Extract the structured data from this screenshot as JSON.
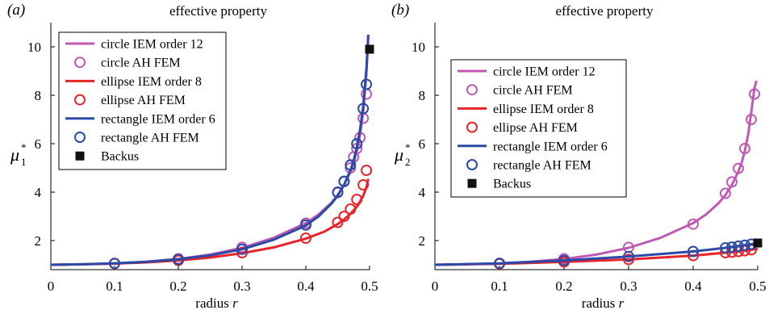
{
  "chart_data": [
    {
      "type": "line",
      "panel_label": "(a)",
      "title": "effective property",
      "xlabel": "radius r",
      "ylabel": "μ",
      "ylabel_sup": "*",
      "ylabel_sub": "1",
      "xlim": [
        0,
        0.5
      ],
      "ylim": [
        0.8,
        11
      ],
      "xticks": [
        "0",
        "0.1",
        "0.2",
        "0.3",
        "0.4",
        "0.5"
      ],
      "yticks": [
        "2",
        "4",
        "6",
        "8",
        "10"
      ],
      "legend_placement": "top-left",
      "series": [
        {
          "name": "circle IEM order 12",
          "kind": "line",
          "color": "#bf5ab4",
          "x": [
            0,
            0.05,
            0.1,
            0.15,
            0.2,
            0.25,
            0.3,
            0.35,
            0.4,
            0.42,
            0.44,
            0.45,
            0.46,
            0.47,
            0.475,
            0.48,
            0.485,
            0.49,
            0.495,
            0.498
          ],
          "y": [
            1.0,
            1.02,
            1.06,
            1.13,
            1.24,
            1.42,
            1.7,
            2.12,
            2.72,
            3.08,
            3.56,
            3.88,
            4.3,
            4.85,
            5.2,
            5.7,
            6.35,
            7.3,
            8.9,
            10.4
          ]
        },
        {
          "name": "circle AH FEM",
          "kind": "marker",
          "color": "#bf5ab4",
          "x": [
            0.1,
            0.2,
            0.3,
            0.4,
            0.45,
            0.46,
            0.47,
            0.475,
            0.48,
            0.485,
            0.49,
            0.495
          ],
          "y": [
            1.06,
            1.25,
            1.72,
            2.72,
            3.98,
            4.43,
            5.0,
            5.45,
            5.8,
            6.25,
            7.05,
            8.05
          ]
        },
        {
          "name": "ellipse IEM order 8",
          "kind": "line",
          "color": "#e8232a",
          "x": [
            0,
            0.05,
            0.1,
            0.15,
            0.2,
            0.25,
            0.3,
            0.35,
            0.4,
            0.43,
            0.45,
            0.46,
            0.47,
            0.48,
            0.485,
            0.49,
            0.495,
            0.498
          ],
          "y": [
            1.0,
            1.02,
            1.05,
            1.1,
            1.18,
            1.3,
            1.48,
            1.72,
            2.08,
            2.38,
            2.68,
            2.87,
            3.1,
            3.4,
            3.6,
            3.85,
            4.2,
            4.55
          ]
        },
        {
          "name": "ellipse AH FEM",
          "kind": "marker",
          "color": "#e8232a",
          "x": [
            0.1,
            0.2,
            0.3,
            0.4,
            0.45,
            0.46,
            0.47,
            0.48,
            0.49,
            0.495
          ],
          "y": [
            1.05,
            1.18,
            1.5,
            2.1,
            2.75,
            3.0,
            3.3,
            3.7,
            4.3,
            4.9
          ]
        },
        {
          "name": "rectangle IEM order 6",
          "kind": "line",
          "color": "#2a4aa6",
          "x": [
            0,
            0.05,
            0.1,
            0.15,
            0.2,
            0.25,
            0.3,
            0.35,
            0.4,
            0.42,
            0.44,
            0.45,
            0.46,
            0.47,
            0.475,
            0.48,
            0.485,
            0.49,
            0.495,
            0.498
          ],
          "y": [
            1.0,
            1.02,
            1.06,
            1.12,
            1.23,
            1.39,
            1.64,
            2.04,
            2.62,
            3.0,
            3.52,
            3.85,
            4.3,
            4.9,
            5.3,
            5.85,
            6.55,
            7.55,
            9.1,
            10.5
          ]
        },
        {
          "name": "rectangle AH FEM",
          "kind": "marker",
          "color": "#2a4aa6",
          "x": [
            0.1,
            0.2,
            0.3,
            0.4,
            0.45,
            0.46,
            0.47,
            0.48,
            0.49,
            0.495
          ],
          "y": [
            1.06,
            1.22,
            1.64,
            2.64,
            4.0,
            4.45,
            5.12,
            6.0,
            7.45,
            8.45
          ]
        },
        {
          "name": "Backus",
          "kind": "square",
          "color": "#111111",
          "x": [
            0.5
          ],
          "y": [
            9.9
          ]
        }
      ]
    },
    {
      "type": "line",
      "panel_label": "(b)",
      "title": "effective property",
      "xlabel": "radius r",
      "ylabel": "μ",
      "ylabel_sup": "*",
      "ylabel_sub": "2",
      "xlim": [
        0,
        0.5
      ],
      "ylim": [
        0.8,
        11
      ],
      "xticks": [
        "0",
        "0.1",
        "0.2",
        "0.3",
        "0.4",
        "0.5"
      ],
      "yticks": [
        "2",
        "4",
        "6",
        "8",
        "10"
      ],
      "legend_placement": "top-left",
      "series": [
        {
          "name": "circle IEM order 12",
          "kind": "line",
          "color": "#bf5ab4",
          "x": [
            0,
            0.05,
            0.1,
            0.15,
            0.2,
            0.25,
            0.3,
            0.35,
            0.4,
            0.42,
            0.44,
            0.45,
            0.46,
            0.47,
            0.475,
            0.48,
            0.485,
            0.49,
            0.495,
            0.498
          ],
          "y": [
            1.0,
            1.02,
            1.06,
            1.13,
            1.24,
            1.42,
            1.7,
            2.12,
            2.72,
            3.08,
            3.56,
            3.88,
            4.3,
            4.85,
            5.2,
            5.7,
            6.35,
            7.3,
            8.3,
            8.6
          ]
        },
        {
          "name": "circle AH FEM",
          "kind": "marker",
          "color": "#bf5ab4",
          "x": [
            0.1,
            0.2,
            0.3,
            0.4,
            0.45,
            0.46,
            0.47,
            0.48,
            0.49,
            0.495
          ],
          "y": [
            1.06,
            1.25,
            1.72,
            2.68,
            3.95,
            4.42,
            4.98,
            5.8,
            7.0,
            8.05
          ]
        },
        {
          "name": "ellipse IEM order 8",
          "kind": "line",
          "color": "#e8232a",
          "x": [
            0,
            0.1,
            0.2,
            0.3,
            0.4,
            0.45,
            0.47,
            0.49,
            0.5
          ],
          "y": [
            1.0,
            1.04,
            1.12,
            1.22,
            1.38,
            1.5,
            1.55,
            1.62,
            1.66
          ]
        },
        {
          "name": "ellipse AH FEM",
          "kind": "marker",
          "color": "#e8232a",
          "x": [
            0.1,
            0.2,
            0.3,
            0.4,
            0.45,
            0.46,
            0.47,
            0.48,
            0.49
          ],
          "y": [
            1.04,
            1.12,
            1.22,
            1.38,
            1.5,
            1.52,
            1.55,
            1.58,
            1.62
          ]
        },
        {
          "name": "rectangle IEM order 6",
          "kind": "line",
          "color": "#2a4aa6",
          "x": [
            0,
            0.1,
            0.2,
            0.3,
            0.4,
            0.45,
            0.47,
            0.49,
            0.5
          ],
          "y": [
            1.0,
            1.06,
            1.18,
            1.34,
            1.55,
            1.7,
            1.77,
            1.85,
            1.9
          ]
        },
        {
          "name": "rectangle AH FEM",
          "kind": "marker",
          "color": "#2a4aa6",
          "x": [
            0.1,
            0.2,
            0.3,
            0.4,
            0.45,
            0.46,
            0.47,
            0.48,
            0.49
          ],
          "y": [
            1.06,
            1.18,
            1.34,
            1.55,
            1.7,
            1.73,
            1.77,
            1.81,
            1.85
          ]
        },
        {
          "name": "Backus",
          "kind": "square",
          "color": "#111111",
          "x": [
            0.5
          ],
          "y": [
            1.9
          ]
        }
      ]
    }
  ]
}
